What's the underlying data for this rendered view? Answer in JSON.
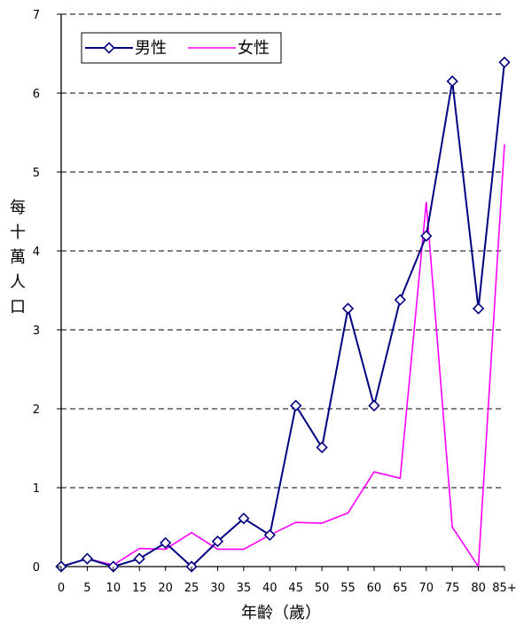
{
  "chart_data": {
    "type": "line",
    "title": "",
    "xlabel": "年齡（歲）",
    "ylabel": "每十萬人口",
    "categories": [
      "0",
      "5",
      "10",
      "15",
      "20",
      "25",
      "30",
      "35",
      "40",
      "45",
      "50",
      "55",
      "60",
      "65",
      "70",
      "75",
      "80",
      "85+"
    ],
    "ylim": [
      0,
      7
    ],
    "yticks": [
      "0",
      "1",
      "2",
      "3",
      "4",
      "5",
      "6",
      "7"
    ],
    "grid": "horizontal-dashed",
    "legend_position": "top-left",
    "series": [
      {
        "name": "男性",
        "color": "#000080",
        "marker": "diamond",
        "values": [
          0,
          0.1,
          0,
          0.1,
          0.3,
          0,
          0.32,
          0.61,
          0.4,
          2.04,
          1.51,
          3.27,
          2.04,
          3.38,
          4.19,
          6.15,
          3.27,
          6.39
        ]
      },
      {
        "name": "女性",
        "color": "#ff00ff",
        "marker": "none",
        "values": [
          0,
          0.1,
          0.02,
          0.23,
          0.22,
          0.43,
          0.22,
          0.22,
          0.4,
          0.56,
          0.55,
          0.68,
          1.2,
          1.12,
          4.62,
          0.5,
          0,
          5.35
        ]
      }
    ]
  }
}
